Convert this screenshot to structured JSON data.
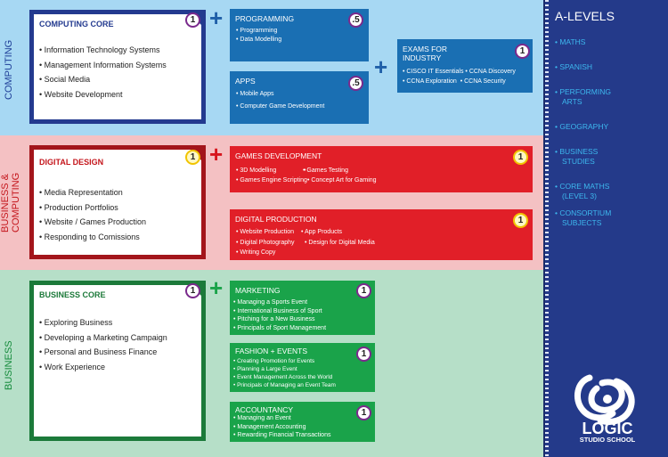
{
  "colors": {
    "computing": "#1a6fb3",
    "business_computing": "#e11f28",
    "business": "#1aa34a",
    "sidebar": "#243a8a",
    "sidebar_link": "#3db8ee"
  },
  "bands": {
    "computing": {
      "label": "COMPUTING",
      "core": {
        "title": "COMPUTING CORE",
        "badge": "1",
        "items": [
          "Information Technology Systems",
          "Management Information Systems",
          "Social Media",
          "Website Development"
        ]
      },
      "programming": {
        "title": "PROGRAMMING",
        "badge": ".5",
        "items": [
          "Programming",
          "Data Modelling"
        ]
      },
      "apps": {
        "title": "APPS",
        "badge": ".5",
        "items": [
          "Mobile Apps",
          "Computer Game Development"
        ]
      },
      "exams": {
        "title_line1": "EXAMS FOR",
        "title_line2": "INDUSTRY",
        "badge": "1",
        "items": [
          "CISCO IT Essentials",
          "CCNA Discovery",
          "CCNA Exploration",
          "CCNA Security"
        ]
      }
    },
    "business_computing": {
      "label_line1": "BUSINESS &",
      "label_line2": "COMPUTING",
      "core": {
        "title": "DIGITAL DESIGN",
        "badge": "1",
        "items": [
          "Media Representation",
          "Production Portfolios",
          "Website / Games Production",
          "Responding to Comissions"
        ]
      },
      "games": {
        "title": "GAMES DEVELOPMENT",
        "badge": "1",
        "items": [
          "3D Modelling",
          "Games Testing",
          "Games Engine Scripting",
          "Concept Art for Gaming"
        ]
      },
      "digital_production": {
        "title": "DIGITAL PRODUCTION",
        "badge": "1",
        "items": [
          "Website Production",
          "App Products",
          "Digital Photography",
          "Design for Digital Media",
          "Writing Copy"
        ]
      }
    },
    "business": {
      "label": "BUSINESS",
      "core": {
        "title": "BUSINESS CORE",
        "badge": "1",
        "items": [
          "Exploring Business",
          "Developing a Marketing Campaign",
          "Personal and Business Finance",
          "Work Experience"
        ]
      },
      "marketing": {
        "title": "MARKETING",
        "badge": "1",
        "items": [
          "Managing a Sports Event",
          "International Business of Sport",
          "Pitching for a New Business",
          "Principals of Sport Management"
        ]
      },
      "fashion": {
        "title": "FASHION + EVENTS",
        "badge": "1",
        "items": [
          "Creating Promotion for Events",
          "Planning a Large Event",
          "Event Management Across the World",
          "Principals of Managing an Event Team"
        ]
      },
      "accountancy": {
        "title": "ACCOUNTANCY",
        "badge": "1",
        "items": [
          "Managing an Event",
          "Management Accounting",
          "Rewarding Financial Transactions"
        ]
      }
    }
  },
  "plus_sign": "+",
  "sidebar": {
    "title": "A-LEVELS",
    "items": [
      "MATHS",
      "SPANISH",
      "PERFORMING",
      "ARTS",
      "GEOGRAPHY",
      "BUSINESS",
      "STUDIES",
      "CORE MATHS",
      "(LEVEL 3)",
      "CONSORTIUM",
      "SUBJECTS"
    ]
  },
  "logo": {
    "icon": "logic-swirl-logo",
    "word": "LOGIC",
    "sub": "STUDIO SCHOOL"
  }
}
